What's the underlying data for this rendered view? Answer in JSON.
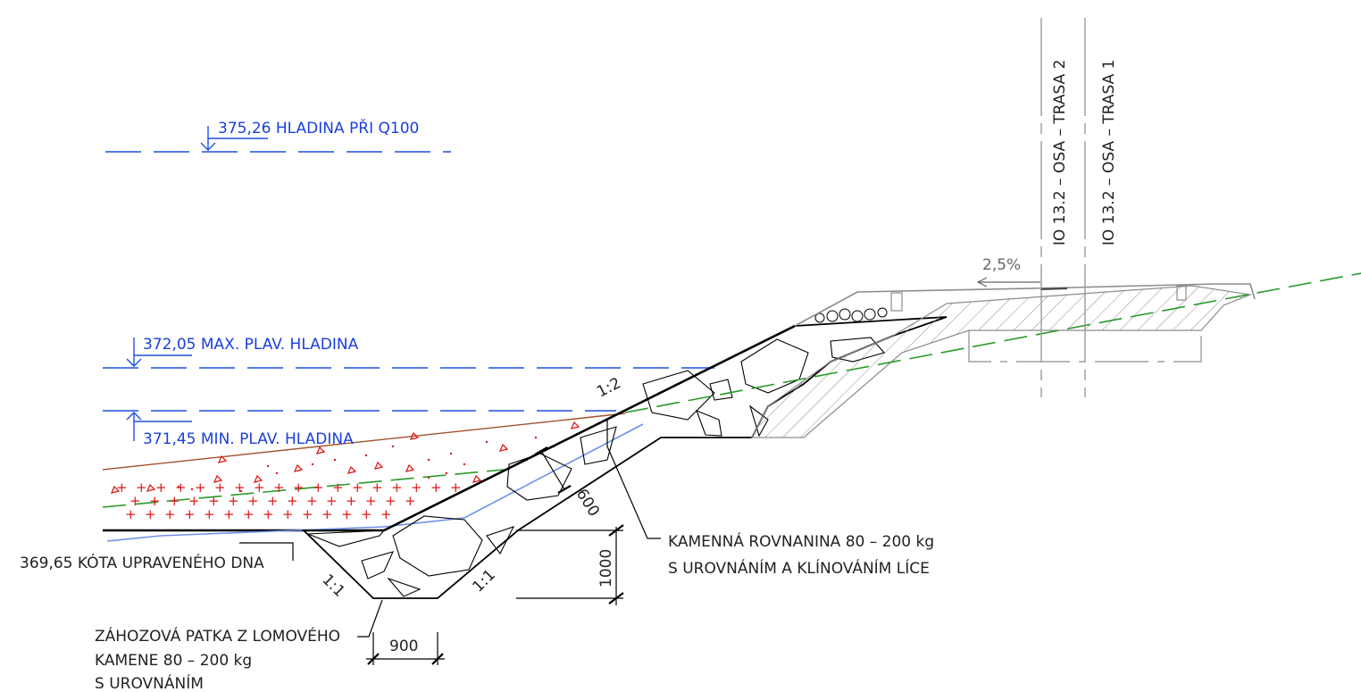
{
  "colors": {
    "water": "#1f4fe0",
    "terrain": "#a0522d",
    "fill_red": "#e01818",
    "green_dash": "#2a9a2a",
    "blue_line": "#6f8fe8",
    "ink": "#000000",
    "grey": "#8c8c8c"
  },
  "levels": {
    "q100": "375,26  HLADINA PŘI Q100",
    "max": "372,05  MAX. PLAV. HLADINA",
    "min": "371,45   MIN. PLAV. HLADINA",
    "bottom": "369,65 KÓTA UPRAVENÉHO DNA"
  },
  "slopes": {
    "main": "1:2",
    "toe_left": "1:1",
    "toe_right": "1:1",
    "road": "2,5%"
  },
  "dimensions": {
    "thickness": "600",
    "toe_height": "1000",
    "toe_width": "900"
  },
  "notes": {
    "riprap_line1": "KAMENNÁ ROVNANINA 80 – 200 kg",
    "riprap_line2": "S UROVNÁNÍM A KLÍNOVÁNÍM LÍCE",
    "toe_line1": "ZÁHOZOVÁ PATKA Z LOMOVÉHO",
    "toe_line2": "KAMENE 80 – 200 kg",
    "toe_line3": "S UROVNÁNÍM"
  },
  "axes": {
    "route2": "IO 13.2 – OSA – TRASA 2",
    "route1": "IO 13.2 – OSA – TRASA 1"
  }
}
